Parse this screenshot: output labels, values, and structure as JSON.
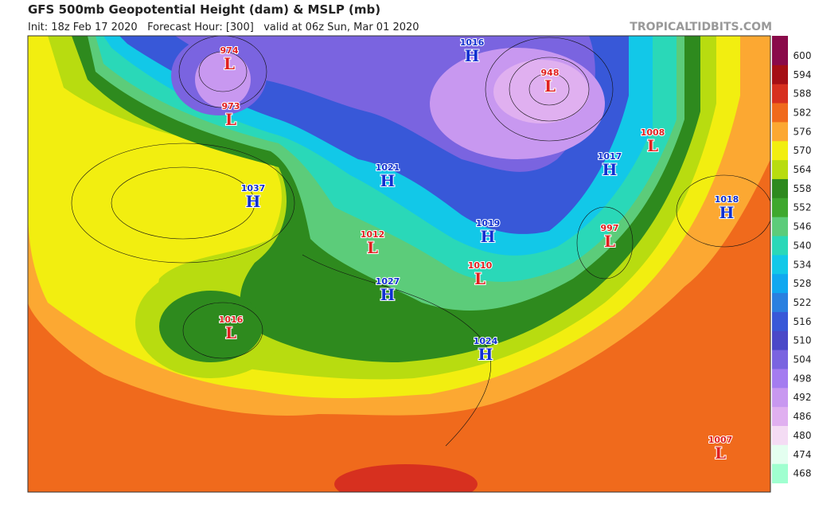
{
  "header": {
    "title": "GFS 500mb Geopotential Height (dam) & MSLP (mb)",
    "subtitle": "Init: 18z Feb 17 2020   Forecast Hour: [300]   valid at 06z Sun, Mar 01 2020",
    "source": "TROPICALTIDBITS.COM"
  },
  "colorbar": {
    "levels": [
      600,
      594,
      588,
      582,
      576,
      570,
      564,
      558,
      552,
      546,
      540,
      534,
      528,
      522,
      516,
      510,
      504,
      498,
      492,
      486,
      480,
      474,
      468
    ],
    "colors": [
      "#8a0a4a",
      "#a50f15",
      "#d7301f",
      "#f06a1c",
      "#fca832",
      "#f2ee10",
      "#b8dc10",
      "#2e8a1e",
      "#3ea82e",
      "#5ccc7a",
      "#2ad8b8",
      "#12c8e8",
      "#10a8f0",
      "#2a80e0",
      "#3858d8",
      "#4a48c8",
      "#7a64e0",
      "#a47cf0",
      "#c898f0",
      "#e0b0f0",
      "#f4dcf4",
      "#e4fff0",
      "#a0ffd0"
    ]
  },
  "high_color": "#1030d0",
  "low_color": "#e02020",
  "centers": [
    {
      "type": "L",
      "value": 974
    },
    {
      "type": "L",
      "value": 973
    },
    {
      "type": "H",
      "value": 1037
    },
    {
      "type": "L",
      "value": 1016
    },
    {
      "type": "H",
      "value": 1027
    },
    {
      "type": "L",
      "value": 1012
    },
    {
      "type": "H",
      "value": 1021
    },
    {
      "type": "H",
      "value": 1016
    },
    {
      "type": "L",
      "value": 948
    },
    {
      "type": "H",
      "value": 1019
    },
    {
      "type": "L",
      "value": 1010
    },
    {
      "type": "H",
      "value": 1024
    },
    {
      "type": "H",
      "value": 1017
    },
    {
      "type": "L",
      "value": 997
    },
    {
      "type": "L",
      "value": 1008
    },
    {
      "type": "H",
      "value": 1018
    },
    {
      "type": "L",
      "value": 1007
    }
  ]
}
